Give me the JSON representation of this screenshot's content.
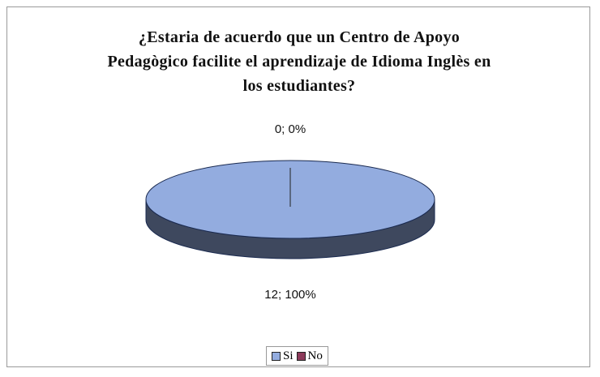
{
  "chart_data": {
    "type": "pie",
    "title": "¿Estaria de acuerdo que un Centro de Apoyo Pedagògico facilite el aprendizaje de Idioma Inglès en los estudiantes?",
    "categories": [
      "Si",
      "No"
    ],
    "values": [
      12,
      0
    ],
    "value_labels": [
      "12; 100%",
      "0; 0%"
    ],
    "colors": [
      "#93acdf",
      "#8c3a5a"
    ],
    "three_d": true,
    "legend": "bottom"
  }
}
